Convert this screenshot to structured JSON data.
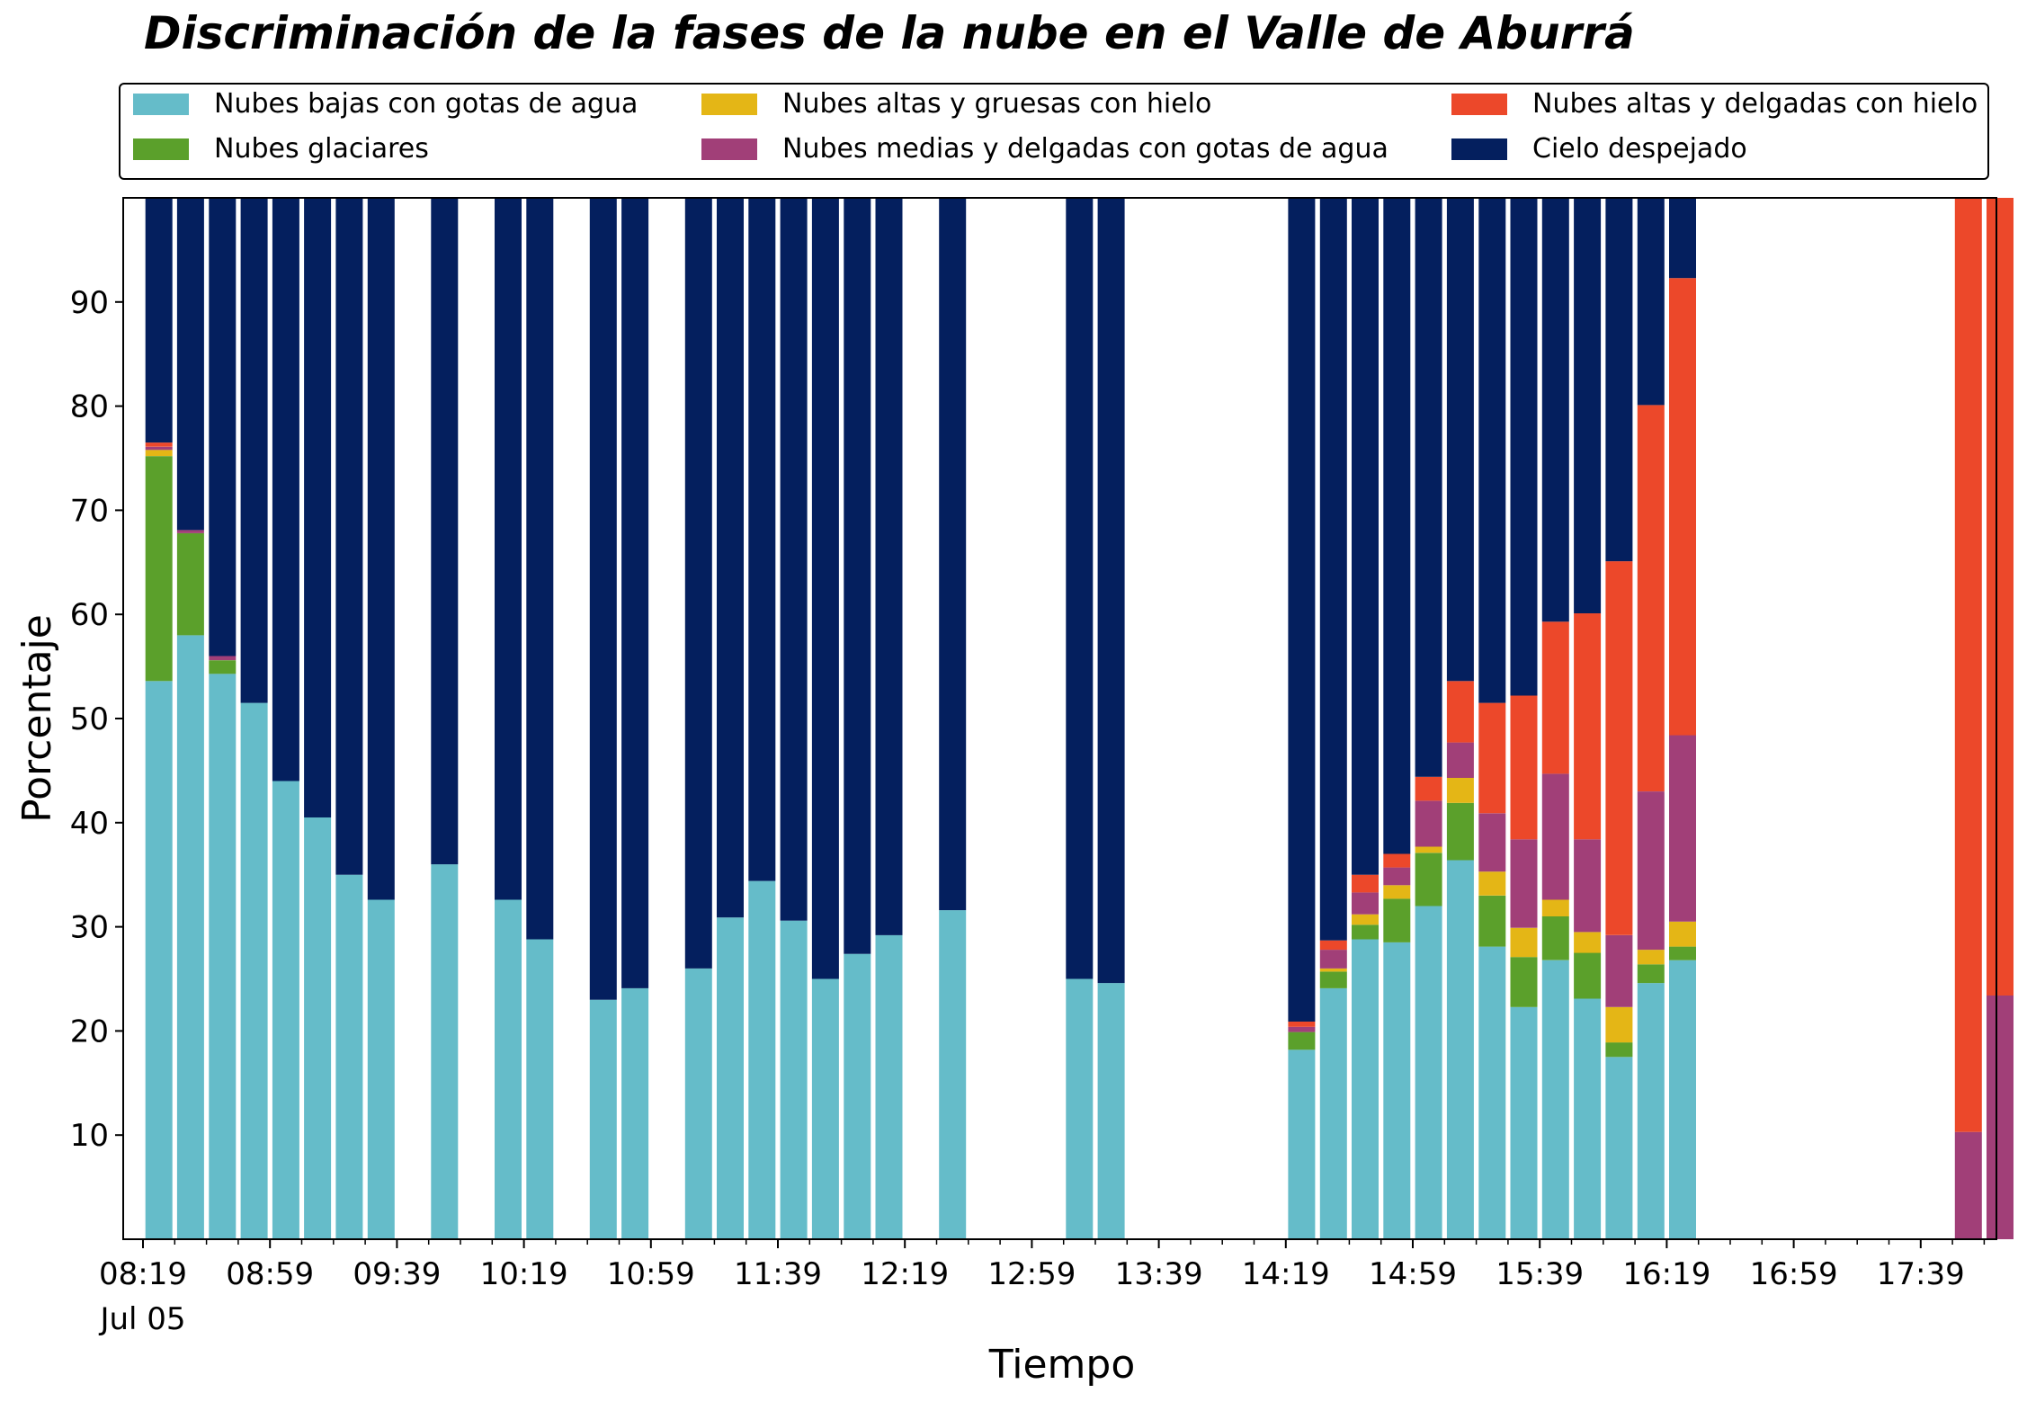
{
  "chart_data": {
    "type": "bar",
    "stacked": true,
    "title": "Discriminación de la fases de la nube en el Valle de Aburrá",
    "xlabel": "Tiempo",
    "ylabel": "Porcentaje",
    "ylim": [
      0,
      100
    ],
    "yticks": [
      10,
      20,
      30,
      40,
      50,
      60,
      70,
      80,
      90
    ],
    "grid": false,
    "legend_position": "top",
    "x_ticks": [
      {
        "label": "08:19",
        "sub": "Jul 05",
        "slot": 0
      },
      {
        "label": "08:59",
        "slot": 4
      },
      {
        "label": "09:39",
        "slot": 8
      },
      {
        "label": "10:19",
        "slot": 12
      },
      {
        "label": "10:59",
        "slot": 16
      },
      {
        "label": "11:39",
        "slot": 20
      },
      {
        "label": "12:19",
        "slot": 24
      },
      {
        "label": "12:59",
        "slot": 28
      },
      {
        "label": "13:39",
        "slot": 32
      },
      {
        "label": "14:19",
        "slot": 36
      },
      {
        "label": "14:59",
        "slot": 40
      },
      {
        "label": "15:39",
        "slot": 44
      },
      {
        "label": "16:19",
        "slot": 48
      },
      {
        "label": "16:59",
        "slot": 52
      },
      {
        "label": "17:39",
        "slot": 56
      }
    ],
    "series": [
      {
        "name": "Nubes bajas con gotas de agua",
        "color": "#65BCC9"
      },
      {
        "name": "Nubes glaciares",
        "color": "#5BA02B"
      },
      {
        "name": "Nubes altas y gruesas con hielo",
        "color": "#E4B616"
      },
      {
        "name": "Nubes medias y delgadas con gotas de agua",
        "color": "#A13F78"
      },
      {
        "name": "Nubes altas y delgadas con hielo",
        "color": "#EC482A"
      },
      {
        "name": "Cielo despejado",
        "color": "#041F5E"
      }
    ],
    "bars": [
      {
        "time": "08:24",
        "values": [
          53.6,
          21.6,
          0.6,
          0.3,
          0.4,
          23.5
        ]
      },
      {
        "time": "08:34",
        "values": [
          58.0,
          9.8,
          0,
          0.3,
          0,
          31.9
        ]
      },
      {
        "time": "08:44",
        "values": [
          54.3,
          1.3,
          0,
          0.4,
          0,
          44.0
        ]
      },
      {
        "time": "08:54",
        "values": [
          51.5,
          0,
          0,
          0,
          0,
          48.5
        ]
      },
      {
        "time": "09:04",
        "values": [
          44.0,
          0,
          0,
          0,
          0,
          56.0
        ]
      },
      {
        "time": "09:14",
        "values": [
          40.5,
          0,
          0,
          0,
          0,
          59.5
        ]
      },
      {
        "time": "09:24",
        "values": [
          35.0,
          0,
          0,
          0,
          0,
          65.0
        ]
      },
      {
        "time": "09:34",
        "values": [
          32.6,
          0,
          0,
          0,
          0,
          67.4
        ]
      },
      {
        "time": "09:54",
        "values": [
          36.0,
          0,
          0,
          0,
          0,
          64.0
        ]
      },
      {
        "time": "10:14",
        "values": [
          32.6,
          0,
          0,
          0,
          0,
          67.4
        ]
      },
      {
        "time": "10:24",
        "values": [
          28.8,
          0,
          0,
          0,
          0,
          71.2
        ]
      },
      {
        "time": "10:44",
        "values": [
          23.0,
          0,
          0,
          0,
          0,
          77.0
        ]
      },
      {
        "time": "10:54",
        "values": [
          24.1,
          0,
          0,
          0,
          0,
          75.9
        ]
      },
      {
        "time": "11:14",
        "values": [
          26.0,
          0,
          0,
          0,
          0,
          74.0
        ]
      },
      {
        "time": "11:24",
        "values": [
          30.9,
          0,
          0,
          0,
          0,
          69.1
        ]
      },
      {
        "time": "11:34",
        "values": [
          34.4,
          0,
          0,
          0,
          0,
          65.6
        ]
      },
      {
        "time": "11:44",
        "values": [
          30.6,
          0,
          0,
          0,
          0,
          69.4
        ]
      },
      {
        "time": "11:54",
        "values": [
          25.0,
          0,
          0,
          0,
          0,
          75.0
        ]
      },
      {
        "time": "12:04",
        "values": [
          27.4,
          0,
          0,
          0,
          0,
          72.6
        ]
      },
      {
        "time": "12:14",
        "values": [
          29.2,
          0,
          0,
          0,
          0,
          70.8
        ]
      },
      {
        "time": "12:34",
        "values": [
          31.6,
          0,
          0,
          0,
          0,
          68.4
        ]
      },
      {
        "time": "13:14",
        "values": [
          25.0,
          0,
          0,
          0,
          0,
          75.0
        ]
      },
      {
        "time": "13:24",
        "values": [
          24.6,
          0,
          0,
          0,
          0,
          75.4
        ]
      },
      {
        "time": "14:24",
        "values": [
          18.2,
          1.7,
          0,
          0.5,
          0.5,
          79.1
        ]
      },
      {
        "time": "14:34",
        "values": [
          24.1,
          1.6,
          0.3,
          1.8,
          0.9,
          71.3
        ]
      },
      {
        "time": "14:44",
        "values": [
          28.8,
          1.4,
          1.0,
          2.1,
          1.7,
          65.0
        ]
      },
      {
        "time": "14:54",
        "values": [
          28.5,
          4.2,
          1.3,
          1.7,
          1.3,
          63.0
        ]
      },
      {
        "time": "15:04",
        "values": [
          32.0,
          5.1,
          0.6,
          4.4,
          2.3,
          55.6
        ]
      },
      {
        "time": "15:14",
        "values": [
          36.4,
          5.5,
          2.4,
          3.4,
          5.9,
          46.4
        ]
      },
      {
        "time": "15:24",
        "values": [
          28.1,
          4.9,
          2.3,
          5.6,
          10.6,
          48.5
        ]
      },
      {
        "time": "15:34",
        "values": [
          22.3,
          4.8,
          2.8,
          8.5,
          13.8,
          47.8
        ]
      },
      {
        "time": "15:44",
        "values": [
          26.8,
          4.2,
          1.6,
          12.1,
          14.6,
          40.7
        ]
      },
      {
        "time": "15:54",
        "values": [
          23.1,
          4.4,
          2.0,
          8.9,
          21.7,
          39.9
        ]
      },
      {
        "time": "16:04",
        "values": [
          17.5,
          1.4,
          3.4,
          6.9,
          35.9,
          34.9
        ]
      },
      {
        "time": "16:14",
        "values": [
          24.6,
          1.8,
          1.4,
          15.2,
          37.1,
          19.9
        ]
      },
      {
        "time": "16:24",
        "values": [
          26.8,
          1.3,
          2.4,
          17.9,
          43.9,
          7.7
        ]
      },
      {
        "time": "17:54",
        "values": [
          0,
          0,
          0,
          10.3,
          89.7,
          0
        ]
      },
      {
        "time": "18:04",
        "values": [
          0,
          0,
          0,
          23.4,
          76.6,
          0
        ]
      }
    ]
  }
}
